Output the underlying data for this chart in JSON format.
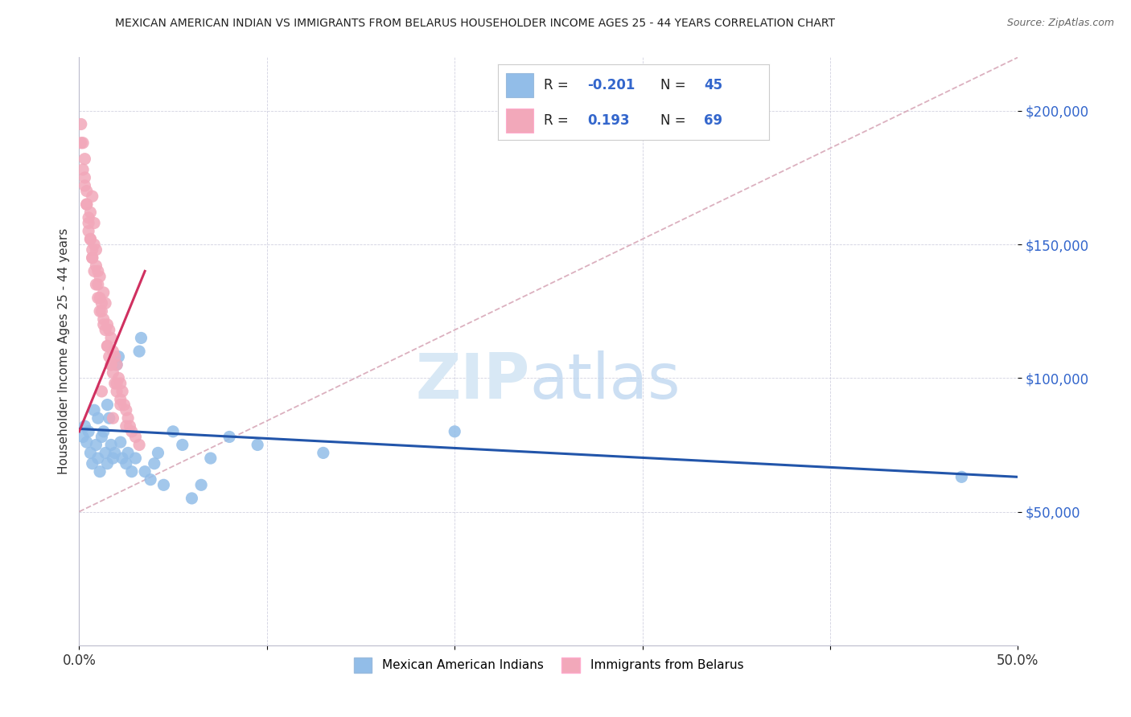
{
  "title": "MEXICAN AMERICAN INDIAN VS IMMIGRANTS FROM BELARUS HOUSEHOLDER INCOME AGES 25 - 44 YEARS CORRELATION CHART",
  "source": "Source: ZipAtlas.com",
  "ylabel": "Householder Income Ages 25 - 44 years",
  "xlim": [
    0.0,
    0.5
  ],
  "ylim": [
    0,
    220000
  ],
  "xtick_pos": [
    0.0,
    0.1,
    0.2,
    0.3,
    0.4,
    0.5
  ],
  "xtick_labels": [
    "0.0%",
    "",
    "",
    "",
    "",
    "50.0%"
  ],
  "ytick_values": [
    50000,
    100000,
    150000,
    200000
  ],
  "ytick_labels": [
    "$50,000",
    "$100,000",
    "$150,000",
    "$200,000"
  ],
  "legend_labels": [
    "Mexican American Indians",
    "Immigrants from Belarus"
  ],
  "blue_color": "#92BDE8",
  "pink_color": "#F2A8BA",
  "blue_line_color": "#2255AA",
  "pink_line_color": "#D03060",
  "dashed_line_color": "#D8A8B8",
  "watermark_zip_color": "#D8E8F5",
  "watermark_atlas_color": "#C0D8F0",
  "R_blue": -0.201,
  "N_blue": 45,
  "R_pink": 0.193,
  "N_pink": 69,
  "blue_scatter_x": [
    0.002,
    0.003,
    0.004,
    0.005,
    0.006,
    0.007,
    0.008,
    0.009,
    0.01,
    0.01,
    0.011,
    0.012,
    0.013,
    0.014,
    0.015,
    0.015,
    0.016,
    0.017,
    0.018,
    0.019,
    0.02,
    0.021,
    0.022,
    0.023,
    0.025,
    0.026,
    0.028,
    0.03,
    0.032,
    0.033,
    0.035,
    0.038,
    0.04,
    0.042,
    0.045,
    0.05,
    0.055,
    0.06,
    0.065,
    0.07,
    0.08,
    0.095,
    0.13,
    0.2,
    0.47
  ],
  "blue_scatter_y": [
    78000,
    82000,
    76000,
    80000,
    72000,
    68000,
    88000,
    75000,
    70000,
    85000,
    65000,
    78000,
    80000,
    72000,
    68000,
    90000,
    85000,
    75000,
    70000,
    72000,
    105000,
    108000,
    76000,
    70000,
    68000,
    72000,
    65000,
    70000,
    110000,
    115000,
    65000,
    62000,
    68000,
    72000,
    60000,
    80000,
    75000,
    55000,
    60000,
    70000,
    78000,
    75000,
    72000,
    80000,
    63000
  ],
  "pink_scatter_x": [
    0.001,
    0.002,
    0.003,
    0.003,
    0.004,
    0.004,
    0.005,
    0.005,
    0.006,
    0.006,
    0.007,
    0.007,
    0.007,
    0.008,
    0.008,
    0.009,
    0.009,
    0.01,
    0.01,
    0.011,
    0.011,
    0.012,
    0.012,
    0.013,
    0.013,
    0.014,
    0.014,
    0.015,
    0.015,
    0.016,
    0.016,
    0.017,
    0.017,
    0.018,
    0.018,
    0.019,
    0.019,
    0.02,
    0.02,
    0.021,
    0.022,
    0.022,
    0.023,
    0.024,
    0.025,
    0.026,
    0.027,
    0.028,
    0.03,
    0.032,
    0.001,
    0.002,
    0.003,
    0.004,
    0.005,
    0.006,
    0.007,
    0.008,
    0.009,
    0.01,
    0.011,
    0.013,
    0.015,
    0.017,
    0.02,
    0.022,
    0.025,
    0.012,
    0.018
  ],
  "pink_scatter_y": [
    195000,
    188000,
    182000,
    175000,
    170000,
    165000,
    160000,
    155000,
    162000,
    152000,
    148000,
    145000,
    168000,
    158000,
    150000,
    148000,
    142000,
    140000,
    135000,
    138000,
    130000,
    128000,
    125000,
    132000,
    122000,
    128000,
    118000,
    120000,
    112000,
    118000,
    108000,
    115000,
    105000,
    110000,
    102000,
    108000,
    98000,
    105000,
    95000,
    100000,
    98000,
    92000,
    95000,
    90000,
    88000,
    85000,
    82000,
    80000,
    78000,
    75000,
    188000,
    178000,
    172000,
    165000,
    158000,
    152000,
    145000,
    140000,
    135000,
    130000,
    125000,
    120000,
    112000,
    105000,
    98000,
    90000,
    82000,
    95000,
    85000
  ]
}
